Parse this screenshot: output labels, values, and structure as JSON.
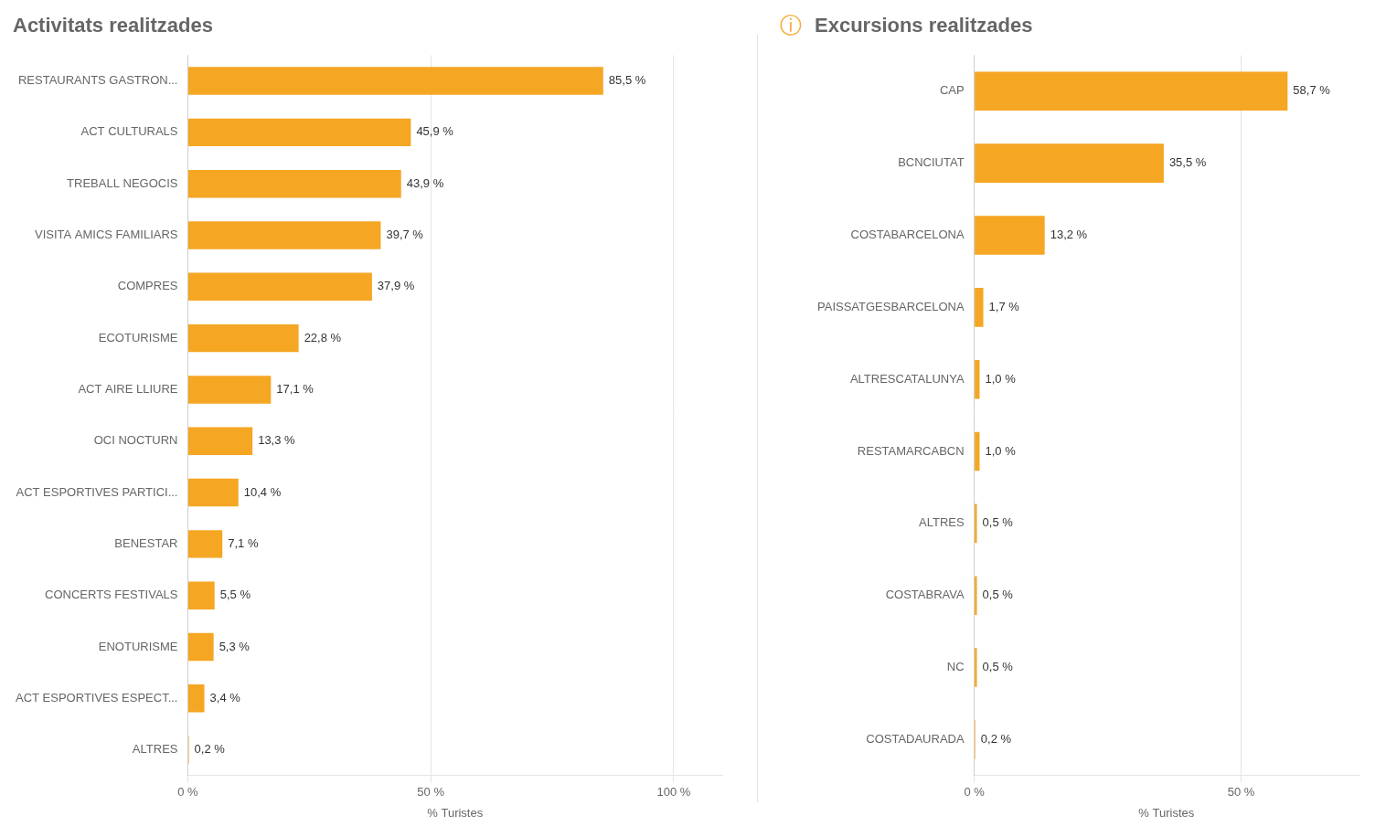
{
  "chart_data": [
    {
      "type": "bar",
      "orientation": "horizontal",
      "title": "Activitats realitzades",
      "xlabel": "% Turistes",
      "categories": [
        "RESTAURANTS GASTRON...",
        "ACT CULTURALS",
        "TREBALL NEGOCIS",
        "VISITA AMICS FAMILIARS",
        "COMPRES",
        "ECOTURISME",
        "ACT AIRE LLIURE",
        "OCI NOCTURN",
        "ACT ESPORTIVES PARTICI...",
        "BENESTAR",
        "CONCERTS FESTIVALS",
        "ENOTURISME",
        "ACT ESPORTIVES ESPECT...",
        "ALTRES"
      ],
      "values": [
        85.5,
        45.9,
        43.9,
        39.7,
        37.9,
        22.8,
        17.1,
        13.3,
        10.4,
        7.1,
        5.5,
        5.3,
        3.4,
        0.2
      ],
      "value_labels": [
        "85,5 %",
        "45,9 %",
        "43,9 %",
        "39,7 %",
        "37,9 %",
        "22,8 %",
        "17,1 %",
        "13,3 %",
        "10,4 %",
        "7,1 %",
        "5,5 %",
        "5,3 %",
        "3,4 %",
        "0,2 %"
      ],
      "color": "#F5A623",
      "xlim": [
        0,
        110
      ],
      "xticks": [
        {
          "value": 0,
          "label": "0 %"
        },
        {
          "value": 50,
          "label": "50 %"
        },
        {
          "value": 100,
          "label": "100 %"
        }
      ],
      "grid": true,
      "data_labels": true
    },
    {
      "type": "bar",
      "orientation": "horizontal",
      "title": "Excursions realitzades",
      "xlabel": "% Turistes",
      "annotations": [
        {
          "text": "ⓘ",
          "color": "#F5A623"
        }
      ],
      "categories": [
        "CAP",
        "BCNCIUTAT",
        "COSTABARCELONA",
        "PAISSATGESBARCELONA",
        "ALTRESCATALUNYA",
        "RESTAMARCABCN",
        "ALTRES",
        "COSTABRAVA",
        "NC",
        "COSTADAURADA"
      ],
      "values": [
        58.7,
        35.5,
        13.2,
        1.7,
        1.0,
        1.0,
        0.5,
        0.5,
        0.5,
        0.2
      ],
      "value_labels": [
        "58,7 %",
        "35,5 %",
        "13,2 %",
        "1,7 %",
        "1,0 %",
        "1,0 %",
        "0,5 %",
        "0,5 %",
        "0,5 %",
        "0,2 %"
      ],
      "color": "#F5A623",
      "xlim": [
        0,
        72
      ],
      "xticks": [
        {
          "value": 0,
          "label": "0 %"
        },
        {
          "value": 50,
          "label": "50 %"
        }
      ],
      "grid": true,
      "data_labels": true
    }
  ]
}
